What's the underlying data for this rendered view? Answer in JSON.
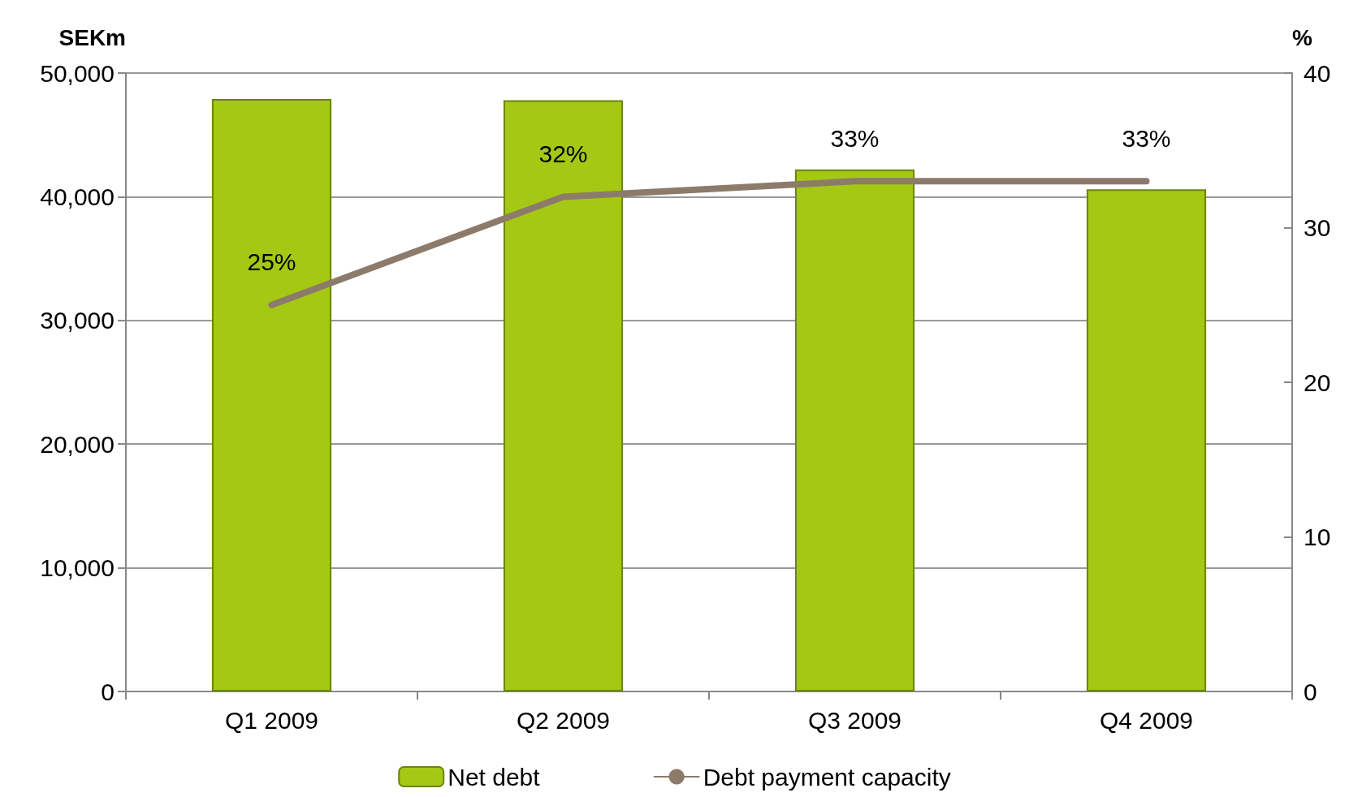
{
  "chart_data": {
    "type": "bar",
    "ylabel": "SEKm",
    "y2label": "%",
    "categories": [
      "Q1 2009",
      "Q2 2009",
      "Q3 2009",
      "Q4 2009"
    ],
    "series": [
      {
        "name": "Net debt",
        "color": "#a4c814",
        "values": [
          47900,
          47800,
          42200,
          40600
        ]
      },
      {
        "name": "Debt payment capacity",
        "type": "line",
        "axis": "y2",
        "color": "#8c7b6b",
        "values": [
          25,
          32,
          33,
          33
        ],
        "value_labels": [
          "25%",
          "32%",
          "33%",
          "33%"
        ]
      }
    ],
    "ylim": [
      0,
      50000
    ],
    "yticks": [
      {
        "value": 0,
        "label": "0"
      },
      {
        "value": 10000,
        "label": "10,000"
      },
      {
        "value": 20000,
        "label": "20,000"
      },
      {
        "value": 30000,
        "label": "30,000"
      },
      {
        "value": 40000,
        "label": "40,000"
      },
      {
        "value": 50000,
        "label": "50,000"
      }
    ],
    "y2lim": [
      0,
      40
    ],
    "y2ticks": [
      0,
      10,
      20,
      30,
      40
    ],
    "grid": "y",
    "legend": "bottom",
    "marker": "none"
  }
}
